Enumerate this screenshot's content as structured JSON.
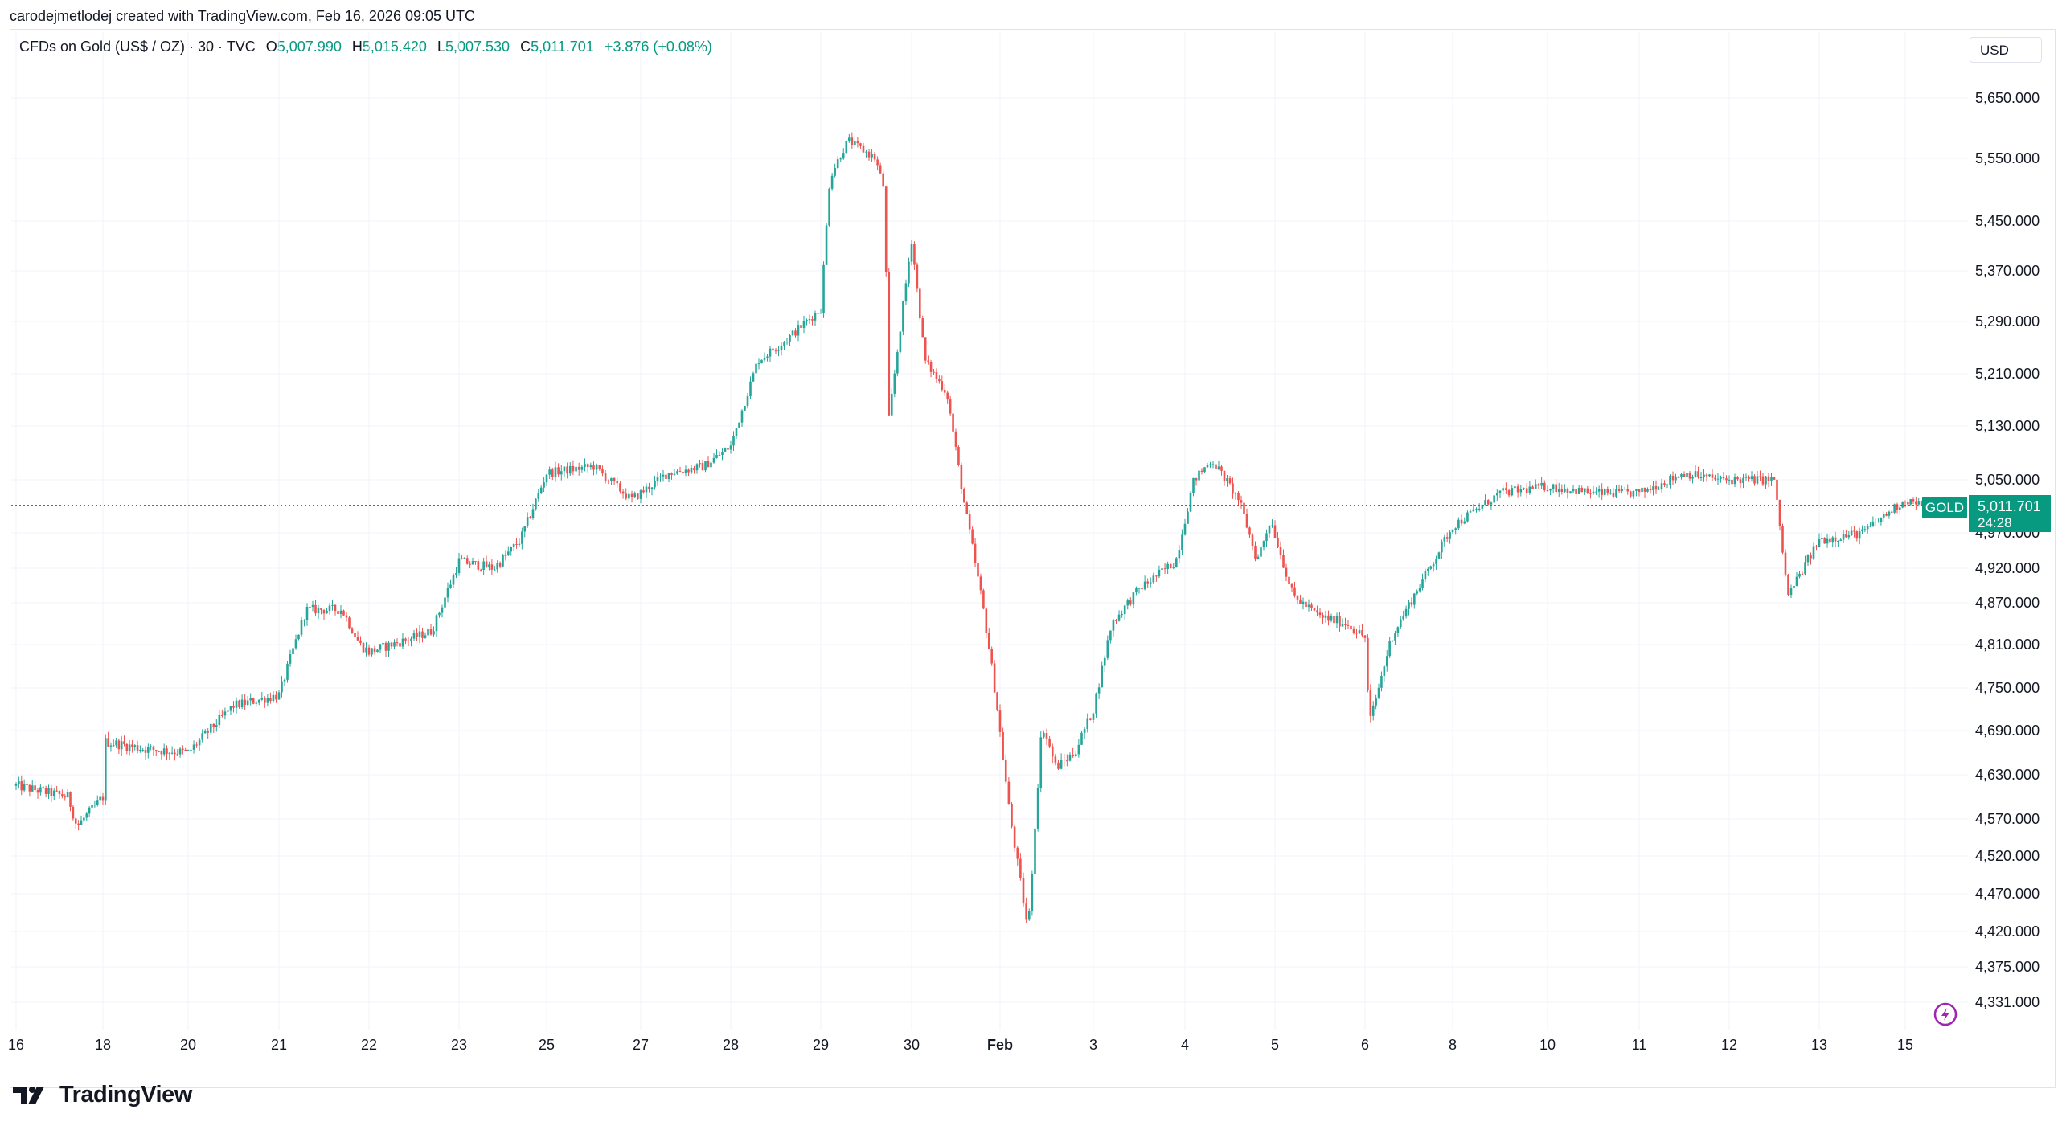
{
  "header": {
    "credit": "carodejmetlodej created with TradingView.com, Feb 16, 2026 09:05 UTC"
  },
  "legend": {
    "symbol": "CFDs on Gold (US$ / OZ) · 30 · TVC",
    "o_label": "O",
    "o_value": "5,007.990",
    "h_label": "H",
    "h_value": "5,015.420",
    "l_label": "L",
    "l_value": "5,007.530",
    "c_label": "C",
    "c_value": "5,011.701",
    "change": "+3.876 (+0.08%)"
  },
  "currency": "USD",
  "price_tag": {
    "symbol": "GOLD",
    "price": "5,011.701",
    "countdown": "24:28"
  },
  "brand": {
    "name": "TradingView"
  },
  "colors": {
    "up": "#089981",
    "down": "#f23645",
    "up_candle": "#26a69a",
    "down_candle": "#ef5350",
    "grid": "#f0f3fa",
    "text": "#131722"
  },
  "chart_data": {
    "type": "candlestick",
    "timeframe": "30",
    "last_price": 5011.701,
    "ylim": [
      4300,
      5700
    ],
    "y_ticks": [
      {
        "value": 5650,
        "label": "5,650.000"
      },
      {
        "value": 5550,
        "label": "5,550.000"
      },
      {
        "value": 5450,
        "label": "5,450.000"
      },
      {
        "value": 5370,
        "label": "5,370.000"
      },
      {
        "value": 5290,
        "label": "5,290.000"
      },
      {
        "value": 5210,
        "label": "5,210.000"
      },
      {
        "value": 5130,
        "label": "5,130.000"
      },
      {
        "value": 5050,
        "label": "5,050.000"
      },
      {
        "value": 4970,
        "label": "4,970.000"
      },
      {
        "value": 4920,
        "label": "4,920.000"
      },
      {
        "value": 4870,
        "label": "4,870.000"
      },
      {
        "value": 4810,
        "label": "4,810.000"
      },
      {
        "value": 4750,
        "label": "4,750.000"
      },
      {
        "value": 4690,
        "label": "4,690.000"
      },
      {
        "value": 4630,
        "label": "4,630.000"
      },
      {
        "value": 4570,
        "label": "4,570.000"
      },
      {
        "value": 4520,
        "label": "4,520.000"
      },
      {
        "value": 4470,
        "label": "4,470.000"
      },
      {
        "value": 4420,
        "label": "4,420.000"
      },
      {
        "value": 4375,
        "label": "4,375.000"
      },
      {
        "value": 4331,
        "label": "4,331.000"
      }
    ],
    "x_ticks": [
      {
        "session": 0,
        "label": "16",
        "bold": false
      },
      {
        "session": 1,
        "label": "18",
        "bold": false
      },
      {
        "session": 2,
        "label": "20",
        "bold": false
      },
      {
        "session": 3,
        "label": "21",
        "bold": false
      },
      {
        "session": 4,
        "label": "22",
        "bold": false
      },
      {
        "session": 5,
        "label": "23",
        "bold": false
      },
      {
        "session": 6,
        "label": "25",
        "bold": false
      },
      {
        "session": 7,
        "label": "27",
        "bold": false
      },
      {
        "session": 8,
        "label": "28",
        "bold": false
      },
      {
        "session": 9,
        "label": "29",
        "bold": false
      },
      {
        "session": 10,
        "label": "30",
        "bold": false
      },
      {
        "session": 11,
        "label": "Feb",
        "bold": true
      },
      {
        "session": 12,
        "label": "3",
        "bold": false
      },
      {
        "session": 13,
        "label": "4",
        "bold": false
      },
      {
        "session": 14,
        "label": "5",
        "bold": false
      },
      {
        "session": 15,
        "label": "6",
        "bold": false
      },
      {
        "session": 16,
        "label": "8",
        "bold": false
      },
      {
        "session": 17,
        "label": "10",
        "bold": false
      },
      {
        "session": 18,
        "label": "11",
        "bold": false
      },
      {
        "session": 19,
        "label": "12",
        "bold": false
      },
      {
        "session": 20,
        "label": "13",
        "bold": false
      },
      {
        "session": 21,
        "label": "15",
        "bold": false
      }
    ],
    "bars_per_session": 32,
    "path": [
      [
        0,
        4615
      ],
      [
        0.6,
        4600
      ],
      [
        0.7,
        4560
      ],
      [
        1.0,
        4600
      ],
      [
        1.02,
        4675
      ],
      [
        1.5,
        4665
      ],
      [
        2.0,
        4660
      ],
      [
        2.5,
        4725
      ],
      [
        3.0,
        4740
      ],
      [
        3.3,
        4860
      ],
      [
        3.7,
        4860
      ],
      [
        3.9,
        4810
      ],
      [
        4.0,
        4800
      ],
      [
        4.5,
        4820
      ],
      [
        4.7,
        4830
      ],
      [
        5.0,
        4930
      ],
      [
        5.4,
        4920
      ],
      [
        5.7,
        4960
      ],
      [
        6.0,
        5060
      ],
      [
        6.5,
        5070
      ],
      [
        6.9,
        5020
      ],
      [
        7.3,
        5060
      ],
      [
        7.7,
        5070
      ],
      [
        8.0,
        5100
      ],
      [
        8.3,
        5230
      ],
      [
        8.6,
        5260
      ],
      [
        9.0,
        5310
      ],
      [
        9.1,
        5520
      ],
      [
        9.3,
        5580
      ],
      [
        9.6,
        5550
      ],
      [
        9.7,
        5500
      ],
      [
        9.75,
        5140
      ],
      [
        10.0,
        5420
      ],
      [
        10.15,
        5230
      ],
      [
        10.4,
        5180
      ],
      [
        10.6,
        5010
      ],
      [
        10.8,
        4870
      ],
      [
        10.95,
        4740
      ],
      [
        11.1,
        4580
      ],
      [
        11.3,
        4420
      ],
      [
        11.45,
        4700
      ],
      [
        11.6,
        4640
      ],
      [
        11.8,
        4660
      ],
      [
        12.0,
        4720
      ],
      [
        12.2,
        4840
      ],
      [
        12.5,
        4890
      ],
      [
        12.9,
        4930
      ],
      [
        13.1,
        5050
      ],
      [
        13.3,
        5080
      ],
      [
        13.6,
        5020
      ],
      [
        13.8,
        4930
      ],
      [
        13.95,
        4990
      ],
      [
        14.2,
        4880
      ],
      [
        14.5,
        4850
      ],
      [
        14.8,
        4840
      ],
      [
        15.0,
        4820
      ],
      [
        15.05,
        4700
      ],
      [
        15.3,
        4820
      ],
      [
        15.6,
        4890
      ],
      [
        16.0,
        4980
      ],
      [
        16.5,
        5030
      ],
      [
        17.0,
        5040
      ],
      [
        17.5,
        5030
      ],
      [
        18.0,
        5030
      ],
      [
        18.5,
        5060
      ],
      [
        18.9,
        5050
      ],
      [
        19.3,
        5050
      ],
      [
        19.5,
        5050
      ],
      [
        19.65,
        4880
      ],
      [
        20.0,
        4960
      ],
      [
        20.5,
        4970
      ],
      [
        20.8,
        5000
      ],
      [
        21.0,
        5020
      ],
      [
        21.2,
        5011.7
      ]
    ]
  }
}
